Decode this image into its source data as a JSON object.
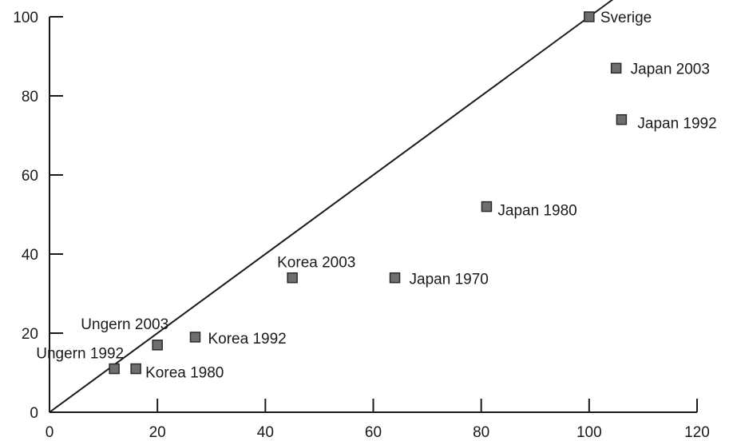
{
  "chart_data": {
    "type": "scatter",
    "title": "",
    "xlabel": "",
    "ylabel": "",
    "xlim": [
      0,
      120
    ],
    "ylim": [
      0,
      100
    ],
    "x_ticks": [
      0,
      20,
      40,
      60,
      80,
      100,
      120
    ],
    "y_ticks": [
      0,
      20,
      40,
      60,
      80,
      100
    ],
    "grid": false,
    "reference_line": {
      "from": [
        0,
        0
      ],
      "to": [
        105,
        105
      ]
    },
    "points": [
      {
        "label": "Sverige",
        "x": 100,
        "y": 100
      },
      {
        "label": "Japan 2003",
        "x": 105,
        "y": 87
      },
      {
        "label": "Japan 1992",
        "x": 106,
        "y": 74
      },
      {
        "label": "Japan 1980",
        "x": 81,
        "y": 52
      },
      {
        "label": "Japan 1970",
        "x": 64,
        "y": 34
      },
      {
        "label": "Korea 2003",
        "x": 45,
        "y": 34
      },
      {
        "label": "Korea 1992",
        "x": 27,
        "y": 19
      },
      {
        "label": "Korea 1980",
        "x": 16,
        "y": 11
      },
      {
        "label": "Ungern 2003",
        "x": 20,
        "y": 17
      },
      {
        "label": "Ungern 1992",
        "x": 12,
        "y": 11
      }
    ]
  }
}
